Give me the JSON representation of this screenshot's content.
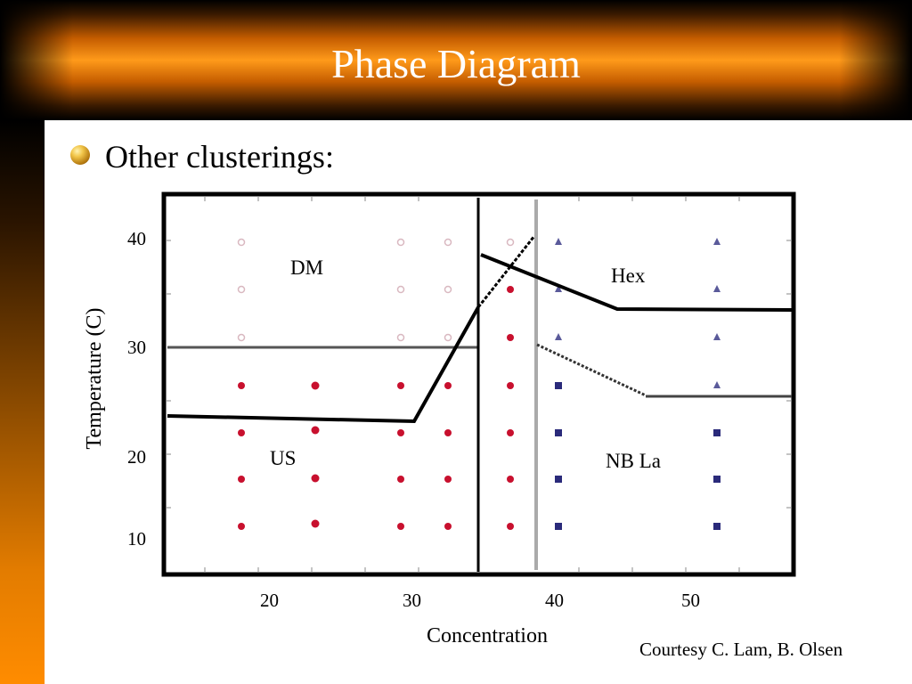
{
  "slide": {
    "title": "Phase Diagram",
    "bullet": "Other clusterings:",
    "credit": "Courtesy C. Lam, B. Olsen"
  },
  "axes": {
    "xlabel": "Concentration",
    "ylabel": "Temperature (C)",
    "xticks": [
      "20",
      "30",
      "40",
      "50"
    ],
    "yticks": [
      "40",
      "30",
      "20",
      "10"
    ]
  },
  "phases": [
    "DM",
    "Hex",
    "US",
    "NB La"
  ],
  "colors": {
    "header_orange": "#ff9a1a",
    "sidebar_orange": "#ff8c00",
    "dm_points": "#d9b8c0",
    "us_points": "#c8102e",
    "hex_points": "#2a2a7a",
    "line": "#000000",
    "gray_line": "#555555"
  }
}
